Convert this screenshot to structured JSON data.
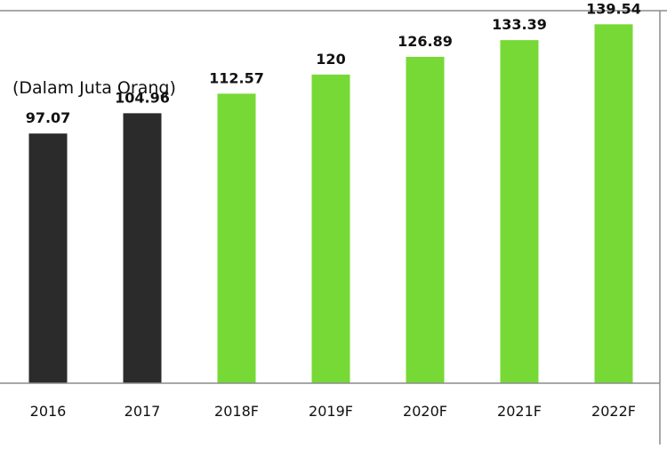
{
  "chart_data": {
    "type": "bar",
    "title": "",
    "unit_label": "(Dalam Juta Orang)",
    "xlabel": "",
    "ylabel": "",
    "ylim": [
      0,
      140
    ],
    "grid": false,
    "categories": [
      "2016",
      "2017",
      "2018F",
      "2019F",
      "2020F",
      "2021F",
      "2022F"
    ],
    "values": [
      97.07,
      104.96,
      112.57,
      120,
      126.89,
      133.39,
      139.54
    ],
    "value_labels": [
      "97.07",
      "104.96",
      "112.57",
      "120",
      "126.89",
      "133.39",
      "139.54"
    ],
    "series_status": [
      "actual",
      "actual",
      "forecast",
      "forecast",
      "forecast",
      "forecast",
      "forecast"
    ],
    "colors": {
      "actual": "#2b2b2b",
      "forecast": "#77d935",
      "frame": "#8c8c8c",
      "text": "#111111"
    }
  }
}
